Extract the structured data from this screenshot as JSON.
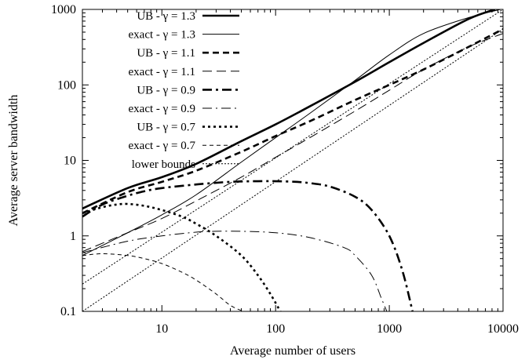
{
  "chart_data": {
    "type": "line",
    "title": "",
    "xlabel": "Average number of users",
    "ylabel": "Average server bandwidth",
    "x_scale": "log",
    "y_scale": "log",
    "xlim": [
      2,
      10000
    ],
    "ylim": [
      0.1,
      1000
    ],
    "x_ticks": [
      {
        "value": 10,
        "label": "10"
      },
      {
        "value": 100,
        "label": "100"
      },
      {
        "value": 1000,
        "label": "1000"
      },
      {
        "value": 10000,
        "label": "10000"
      }
    ],
    "y_ticks": [
      {
        "value": 0.1,
        "label": "0.1"
      },
      {
        "value": 1,
        "label": "1"
      },
      {
        "value": 10,
        "label": "10"
      },
      {
        "value": 100,
        "label": "100"
      },
      {
        "value": 1000,
        "label": "1000"
      }
    ],
    "grid": false,
    "legend_position": "top-left",
    "series": [
      {
        "name": "UB - γ = 1.3",
        "style": "thick-solid",
        "x": [
          2,
          5,
          10,
          20,
          50,
          100,
          200,
          500,
          1000,
          2000,
          5000,
          8500
        ],
        "y": [
          2.3,
          4.3,
          6.0,
          9.0,
          18,
          30,
          52,
          110,
          200,
          360,
          750,
          1000
        ]
      },
      {
        "name": "exact - γ = 1.3",
        "style": "thin-solid",
        "x": [
          2,
          5,
          10,
          20,
          50,
          100,
          200,
          500,
          1000,
          2000,
          5000,
          9500
        ],
        "y": [
          0.55,
          1.1,
          1.9,
          3.5,
          9.5,
          20,
          42,
          115,
          250,
          480,
          780,
          1000
        ]
      },
      {
        "name": "UB - γ = 1.1",
        "style": "thick-dashed",
        "x": [
          2,
          5,
          10,
          20,
          50,
          100,
          200,
          500,
          1000,
          2000,
          5000,
          10000
        ],
        "y": [
          2.0,
          3.8,
          5.2,
          7.3,
          13,
          21,
          33,
          63,
          100,
          160,
          320,
          550
        ]
      },
      {
        "name": "exact - γ = 1.1",
        "style": "thin-dashed",
        "x": [
          2,
          5,
          10,
          20,
          50,
          100,
          200,
          500,
          1000,
          2000,
          5000,
          10000
        ],
        "y": [
          0.62,
          1.1,
          1.7,
          2.9,
          6.0,
          11,
          20,
          45,
          85,
          160,
          320,
          480
        ]
      },
      {
        "name": "UB - γ = 0.9",
        "style": "thick-dashdot",
        "x": [
          2,
          3,
          5,
          7,
          10,
          20,
          40,
          70,
          100,
          150,
          200,
          300,
          500,
          700,
          1000,
          1300,
          1600
        ],
        "y": [
          1.8,
          2.6,
          3.4,
          3.9,
          4.3,
          4.8,
          5.2,
          5.3,
          5.3,
          5.2,
          5.0,
          4.5,
          3.3,
          2.2,
          1.0,
          0.35,
          0.1
        ]
      },
      {
        "name": "exact - γ = 0.9",
        "style": "thin-dashdot",
        "x": [
          2,
          5,
          10,
          20,
          30,
          50,
          100,
          200,
          400,
          500,
          700,
          850,
          950
        ],
        "y": [
          0.6,
          0.85,
          1.0,
          1.12,
          1.15,
          1.15,
          1.1,
          0.95,
          0.7,
          0.55,
          0.3,
          0.15,
          0.1
        ]
      },
      {
        "name": "UB - γ = 0.7",
        "style": "thick-dotted",
        "x": [
          2,
          3,
          4,
          5,
          7,
          10,
          15,
          20,
          30,
          50,
          70,
          90,
          110
        ],
        "y": [
          2.0,
          2.4,
          2.6,
          2.65,
          2.5,
          2.2,
          1.8,
          1.45,
          1.0,
          0.55,
          0.3,
          0.17,
          0.1
        ]
      },
      {
        "name": "exact - γ = 0.7",
        "style": "thin-dashed-short",
        "x": [
          2,
          3,
          5,
          7,
          10,
          15,
          20,
          30,
          40,
          52
        ],
        "y": [
          0.55,
          0.58,
          0.55,
          0.5,
          0.43,
          0.33,
          0.26,
          0.17,
          0.12,
          0.1
        ]
      },
      {
        "name": "lower bounds",
        "style": "thin-dotted",
        "x": [
          2,
          10000
        ],
        "y": [
          0.23,
          1000
        ]
      },
      {
        "name": "",
        "style": "thin-dotted",
        "x": [
          2,
          10000
        ],
        "y": [
          0.1,
          550
        ]
      }
    ]
  }
}
